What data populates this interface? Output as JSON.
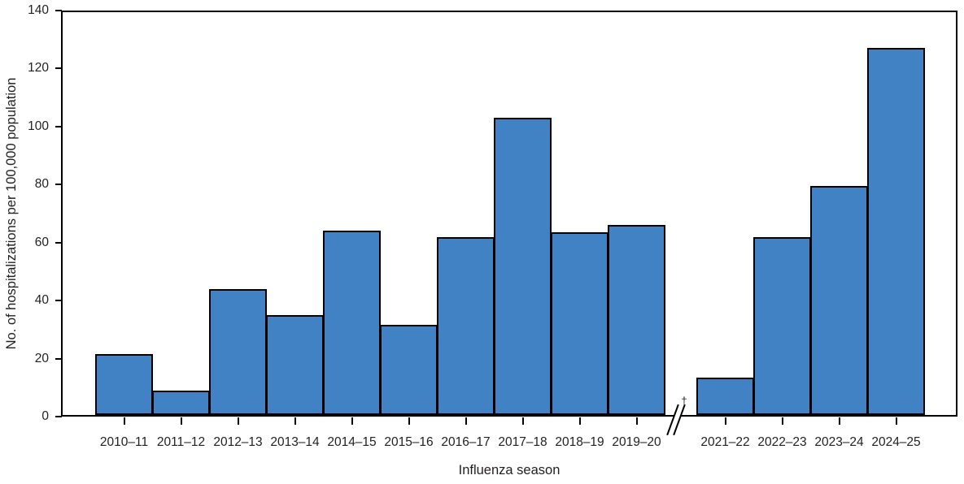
{
  "chart_data": {
    "type": "bar",
    "categories": [
      "2010–11",
      "2011–12",
      "2012–13",
      "2013–14",
      "2014–15",
      "2015–16",
      "2016–17",
      "2017–18",
      "2018–19",
      "2019–20",
      "2021–22",
      "2022–23",
      "2023–24",
      "2024–25"
    ],
    "values": [
      21.5,
      9,
      44,
      35,
      64,
      31.5,
      62,
      103,
      63.5,
      66,
      13.5,
      62,
      79.5,
      127
    ],
    "xlabel": "Influenza season",
    "ylabel": "No. of hospitalizations per 100,000 population",
    "ylim": [
      0,
      140
    ],
    "y_ticks": [
      0,
      20,
      40,
      60,
      80,
      100,
      120,
      140
    ],
    "bar_color": "#4182C4",
    "bar_border_color": "#000000",
    "axis_color": "#000000",
    "text_color": "#231f20",
    "grid": "off",
    "legend": "none",
    "axis_break": {
      "after_category": "2019–20",
      "before_category": "2021–22",
      "symbol": "†",
      "mark": "double-slash"
    }
  }
}
